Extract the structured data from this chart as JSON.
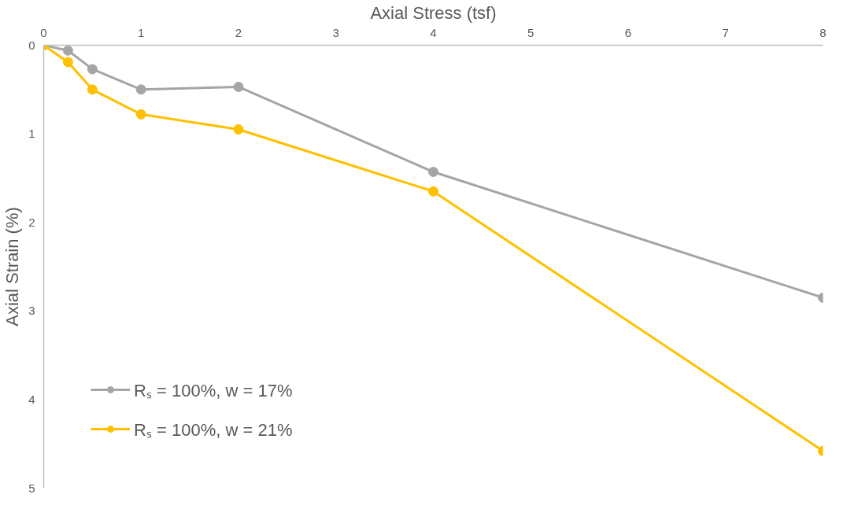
{
  "chart_data": {
    "type": "line",
    "xlabel": "Axial Stress (tsf)",
    "ylabel": "Axial Strain (%)",
    "x": [
      0,
      0.25,
      0.5,
      1,
      2,
      4,
      8
    ],
    "series": [
      {
        "name": "Rₛ = 100%, w = 17%",
        "color": "#a5a5a5",
        "values": [
          0,
          0.06,
          0.27,
          0.5,
          0.47,
          1.43,
          2.85
        ]
      },
      {
        "name": "Rₛ = 100%, w = 21%",
        "color": "#ffc000",
        "values": [
          0,
          0.19,
          0.5,
          0.78,
          0.95,
          1.65,
          4.58
        ]
      }
    ],
    "xlim": [
      0,
      8
    ],
    "xticks": [
      0,
      1,
      2,
      3,
      4,
      5,
      6,
      7,
      8
    ],
    "ylim": [
      5,
      0
    ],
    "yticks": [
      0,
      1,
      2,
      3,
      4,
      5
    ],
    "grid": false,
    "legend": "bottom left",
    "marker": "circle",
    "line_style": "solid"
  }
}
